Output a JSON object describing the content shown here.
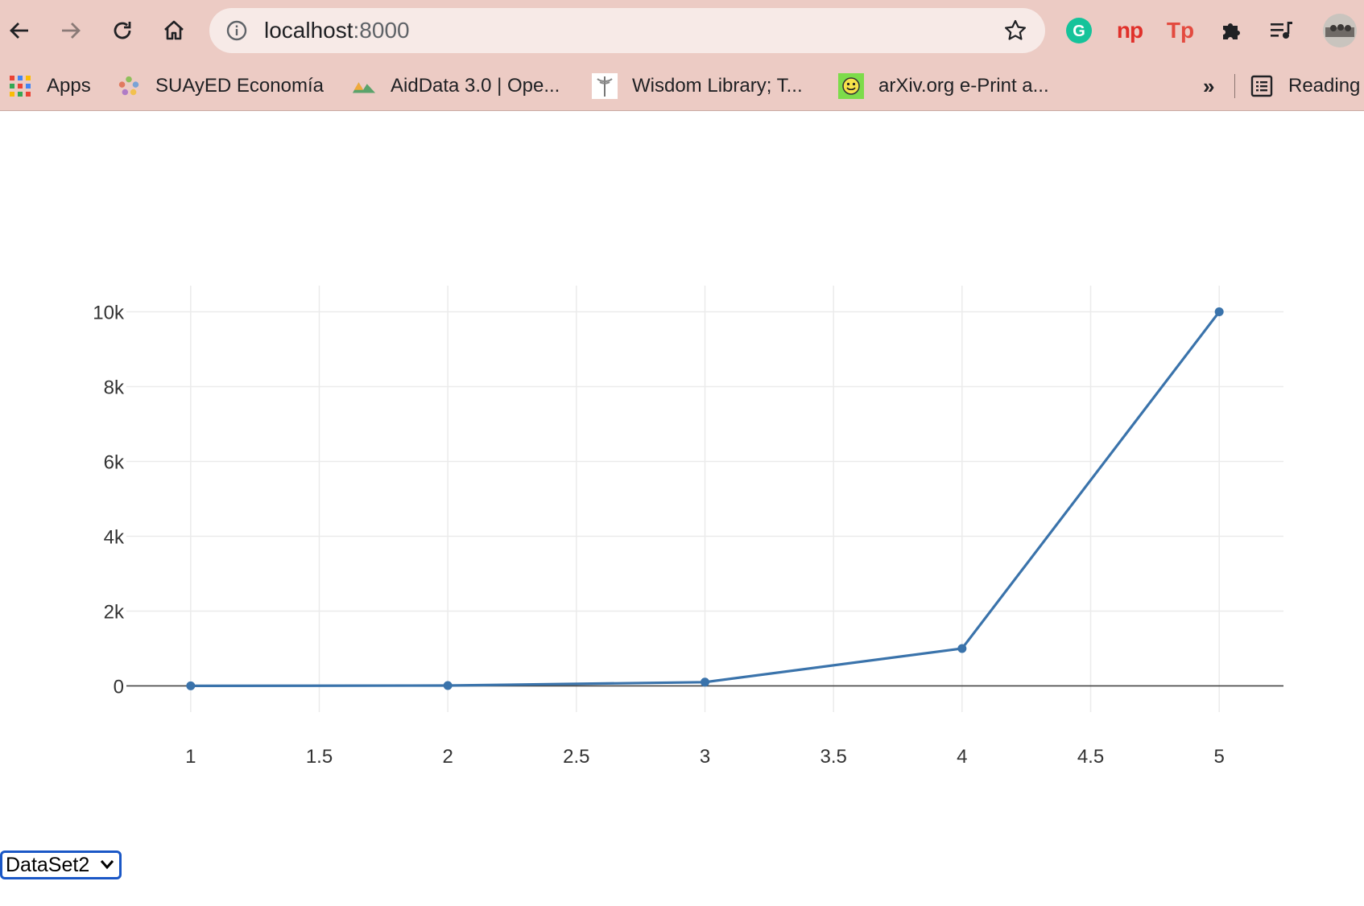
{
  "browser": {
    "url_host": "localhost",
    "url_port": ":8000",
    "extensions": [
      "grammarly-icon",
      "np-extension-icon",
      "tp-extension-icon",
      "puzzle-icon",
      "reading-list-icon",
      "profile-avatar"
    ],
    "ext_labels": {
      "grammarly": "G",
      "np": "np",
      "tp": "Tp"
    }
  },
  "bookmarks": {
    "items": [
      {
        "label": "Apps",
        "icon": "apps-grid-icon"
      },
      {
        "label": "SUAyED Economía",
        "icon": "suayed-icon"
      },
      {
        "label": "AidData 3.0 | Ope...",
        "icon": "aiddata-icon"
      },
      {
        "label": "Wisdom Library; T...",
        "icon": "wisdom-library-icon"
      },
      {
        "label": "arXiv.org e-Print a...",
        "icon": "arxiv-icon"
      }
    ],
    "overflow": "»",
    "reading_list": "Reading"
  },
  "chart_data": {
    "type": "line",
    "x": [
      1,
      2,
      3,
      4,
      5
    ],
    "series": [
      {
        "values": [
          1,
          10,
          100,
          1000,
          10000
        ],
        "color": "#3a73ab"
      }
    ],
    "xlim": [
      0.75,
      5.25
    ],
    "ylim": [
      -700,
      10700
    ],
    "x_ticks": [
      1,
      1.5,
      2,
      2.5,
      3,
      3.5,
      4,
      4.5,
      5
    ],
    "x_tick_labels": [
      "1",
      "1.5",
      "2",
      "2.5",
      "3",
      "3.5",
      "4",
      "4.5",
      "5"
    ],
    "y_ticks": [
      0,
      2000,
      4000,
      6000,
      8000,
      10000
    ],
    "y_tick_labels": [
      "0",
      "2k",
      "4k",
      "6k",
      "8k",
      "10k"
    ],
    "grid": true,
    "markers": true
  },
  "dataset_select": {
    "selected": "DataSet2"
  }
}
